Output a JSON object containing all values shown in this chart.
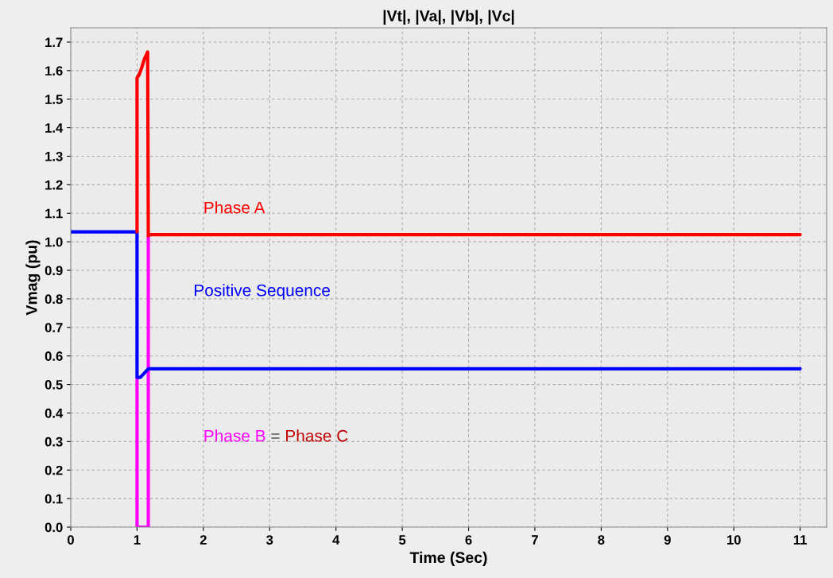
{
  "chart_data": {
    "type": "line",
    "title": "|Vt|, |Va|, |Vb|, |Vc|",
    "xlabel": "Time (Sec)",
    "ylabel": "Vmag (pu)",
    "series": [
      {
        "name": "Phase B",
        "color": "#ff00ff",
        "x": [
          1.0,
          1.0,
          1.17,
          1.17
        ],
        "values": [
          0.525,
          0.0,
          0.0,
          1.02
        ]
      },
      {
        "name": "Positive Sequence",
        "color": "#0000ff",
        "x": [
          0,
          1.0,
          1.0,
          1.05,
          1.17,
          11
        ],
        "values": [
          1.035,
          1.035,
          0.525,
          0.525,
          0.555,
          0.555
        ]
      },
      {
        "name": "Phase A",
        "color": "#ff0000",
        "x": [
          1.0,
          1.0,
          1.03,
          1.07,
          1.11,
          1.16,
          1.17,
          1.18,
          11
        ],
        "values": [
          1.035,
          1.575,
          1.585,
          1.61,
          1.64,
          1.665,
          1.02,
          1.025,
          1.025
        ]
      }
    ],
    "annotations": [
      "=",
      "Phase C"
    ],
    "xlim": [
      0,
      11.4
    ],
    "ylim": [
      0,
      1.75
    ],
    "xticks": [
      0,
      1,
      2,
      3,
      4,
      5,
      6,
      7,
      8,
      9,
      10,
      11
    ],
    "yticks": [
      {
        "value": 0,
        "label": "0.0"
      },
      {
        "value": 0.1,
        "label": "0.1"
      },
      {
        "value": 0.2,
        "label": "0.2"
      },
      {
        "value": 0.3,
        "label": "0.3"
      },
      {
        "value": 0.4,
        "label": "0.4"
      },
      {
        "value": 0.5,
        "label": "0.5"
      },
      {
        "value": 0.6,
        "label": "0.6"
      },
      {
        "value": 0.7,
        "label": "0.7"
      },
      {
        "value": 0.8,
        "label": "0.8"
      },
      {
        "value": 0.9,
        "label": "0.9"
      },
      {
        "value": 1.0,
        "label": "1.0"
      },
      {
        "value": 1.1,
        "label": "1.1"
      },
      {
        "value": 1.2,
        "label": "1.2"
      },
      {
        "value": 1.3,
        "label": "1.3"
      },
      {
        "value": 1.4,
        "label": "1.4"
      },
      {
        "value": 1.5,
        "label": "1.5"
      },
      {
        "value": 1.6,
        "label": "1.6"
      },
      {
        "value": 1.7,
        "label": "1.7"
      }
    ],
    "grid": true,
    "legend": false,
    "line_style": "solid",
    "marker": "none"
  }
}
